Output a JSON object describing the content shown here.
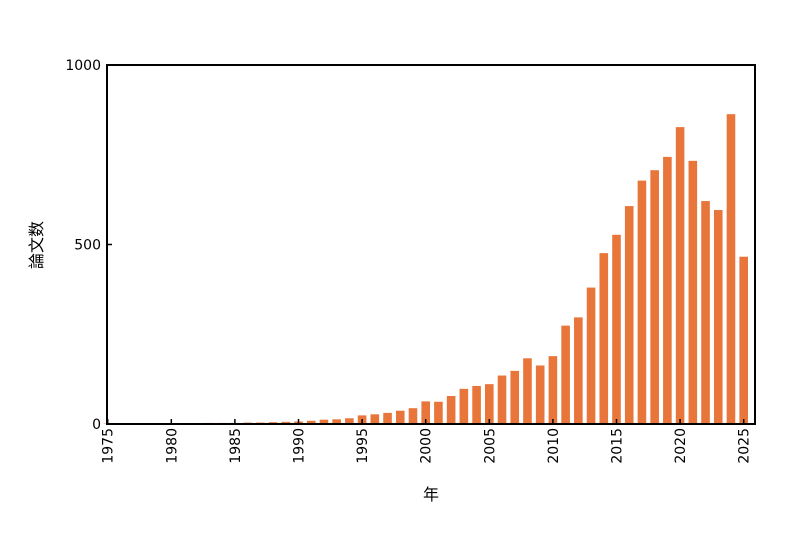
{
  "chart_data": {
    "type": "bar",
    "xlabel": "年",
    "ylabel": "論文数",
    "ylim": [
      0,
      1000
    ],
    "yticks": [
      "0",
      "500",
      "1000"
    ],
    "xticks": [
      "1975",
      "1980",
      "1985",
      "1990",
      "1995",
      "2000",
      "2005",
      "2010",
      "2015",
      "2020",
      "2025"
    ],
    "bar_color": "#e8753a",
    "grid": false,
    "x": [
      1975,
      1976,
      1977,
      1978,
      1979,
      1980,
      1981,
      1982,
      1983,
      1984,
      1985,
      1986,
      1987,
      1988,
      1989,
      1990,
      1991,
      1992,
      1993,
      1994,
      1995,
      1996,
      1997,
      1998,
      1999,
      2000,
      2001,
      2002,
      2003,
      2004,
      2005,
      2006,
      2007,
      2008,
      2009,
      2010,
      2011,
      2012,
      2013,
      2014,
      2015,
      2016,
      2017,
      2018,
      2019,
      2020,
      2021,
      2022,
      2023,
      2024,
      2025
    ],
    "values": [
      1,
      1,
      1,
      1,
      2,
      2,
      2,
      2,
      3,
      3,
      3,
      4,
      4,
      5,
      6,
      7,
      9,
      12,
      13,
      16,
      24,
      27,
      31,
      37,
      44,
      63,
      62,
      78,
      98,
      106,
      111,
      135,
      148,
      183,
      163,
      189,
      274,
      297,
      380,
      476,
      527,
      607,
      678,
      707,
      744,
      827,
      733,
      621,
      596,
      863,
      466
    ]
  }
}
